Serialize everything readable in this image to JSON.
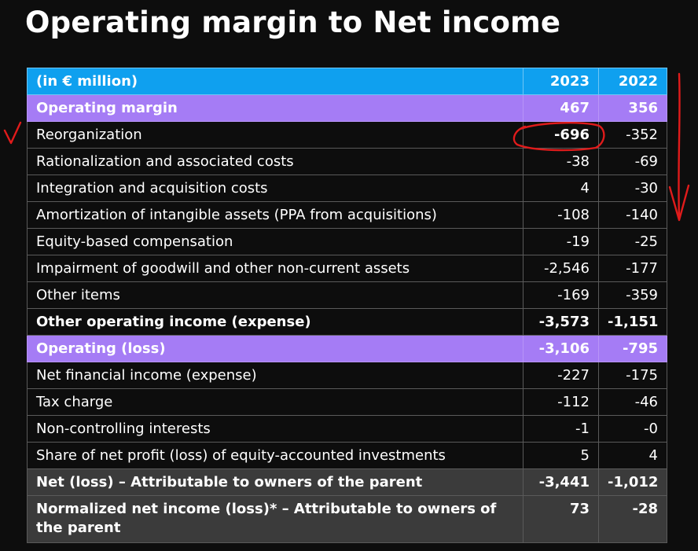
{
  "title": "Operating margin to Net income",
  "table": {
    "header": {
      "label": "(in € million)",
      "y1": "2023",
      "y2": "2022"
    },
    "rows": [
      {
        "label": "Operating margin",
        "y1": "467",
        "y2": "356",
        "style": "highlight"
      },
      {
        "label": "Reorganization",
        "y1": "-696",
        "y2": "-352",
        "style": "regular",
        "y1_emphasis": true
      },
      {
        "label": "Rationalization and associated costs",
        "y1": "-38",
        "y2": "-69",
        "style": "regular"
      },
      {
        "label": "Integration and acquisition costs",
        "y1": "4",
        "y2": "-30",
        "style": "regular"
      },
      {
        "label": "Amortization of intangible assets (PPA from acquisitions)",
        "y1": "-108",
        "y2": "-140",
        "style": "regular"
      },
      {
        "label": "Equity-based compensation",
        "y1": "-19",
        "y2": "-25",
        "style": "regular"
      },
      {
        "label": "Impairment of goodwill and other non-current assets",
        "y1": "-2,546",
        "y2": "-177",
        "style": "regular"
      },
      {
        "label": "Other items",
        "y1": "-169",
        "y2": "-359",
        "style": "regular"
      },
      {
        "label": "Other operating income (expense)",
        "y1": "-3,573",
        "y2": "-1,151",
        "style": "bold"
      },
      {
        "label": "Operating (loss)",
        "y1": "-3,106",
        "y2": "-795",
        "style": "highlight"
      },
      {
        "label": "Net financial income (expense)",
        "y1": "-227",
        "y2": "-175",
        "style": "regular"
      },
      {
        "label": "Tax charge",
        "y1": "-112",
        "y2": "-46",
        "style": "regular"
      },
      {
        "label": "Non-controlling interests",
        "y1": "-1",
        "y2": "-0",
        "style": "regular"
      },
      {
        "label": "Share of net profit (loss) of equity-accounted investments",
        "y1": "5",
        "y2": "4",
        "style": "regular"
      },
      {
        "label": "Net (loss) – Attributable to owners of the parent",
        "y1": "-3,441",
        "y2": "-1,012",
        "style": "gray"
      },
      {
        "label": "Normalized net income (loss)* – Attributable to owners of the parent",
        "y1": "73",
        "y2": "-28",
        "style": "gray"
      }
    ]
  },
  "colors": {
    "background": "#0d0d0d",
    "header": "#0fa0ef",
    "highlight": "#a57cf5",
    "subtotal": "#3b3b3b",
    "annotation": "#e01b1b"
  }
}
